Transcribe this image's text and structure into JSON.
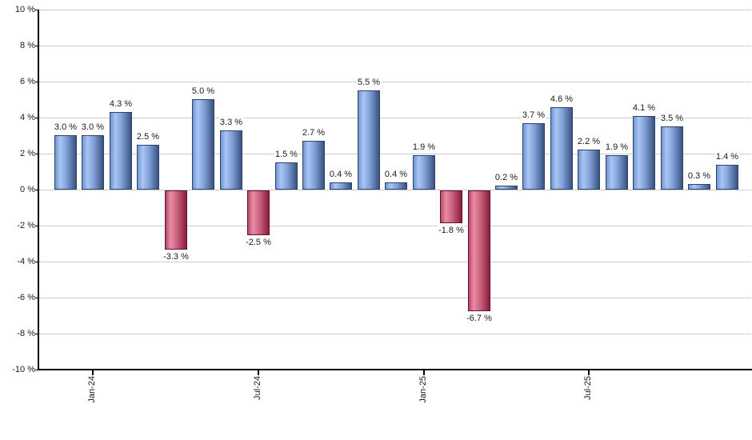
{
  "chart_data": {
    "type": "bar",
    "title": "",
    "unit": "%",
    "grid": true,
    "legend": "none",
    "bars": [
      {
        "value": 3.0,
        "label": "3.0 %"
      },
      {
        "value": 3.0,
        "label": "3.0 %"
      },
      {
        "value": 4.3,
        "label": "4.3 %"
      },
      {
        "value": 2.5,
        "label": "2.5 %"
      },
      {
        "value": -3.3,
        "label": "-3.3 %"
      },
      {
        "value": 5.0,
        "label": "5.0 %"
      },
      {
        "value": 3.3,
        "label": "3.3 %"
      },
      {
        "value": -2.5,
        "label": "-2.5 %"
      },
      {
        "value": 1.5,
        "label": "1.5 %"
      },
      {
        "value": 2.7,
        "label": "2.7 %"
      },
      {
        "value": 0.4,
        "label": "0.4 %"
      },
      {
        "value": 5.5,
        "label": "5.5 %"
      },
      {
        "value": 0.4,
        "label": "0.4 %"
      },
      {
        "value": 1.9,
        "label": "1.9 %"
      },
      {
        "value": -1.8,
        "label": "-1.8 %"
      },
      {
        "value": -6.7,
        "label": "-6.7 %"
      },
      {
        "value": 0.2,
        "label": "0.2 %"
      },
      {
        "value": 3.7,
        "label": "3.7 %"
      },
      {
        "value": 4.6,
        "label": "4.6 %"
      },
      {
        "value": 2.2,
        "label": "2.2 %"
      },
      {
        "value": 1.9,
        "label": "1.9 %"
      },
      {
        "value": 4.1,
        "label": "4.1 %"
      },
      {
        "value": 3.5,
        "label": "3.5 %"
      },
      {
        "value": 0.3,
        "label": "0.3 %"
      },
      {
        "value": 1.4,
        "label": "1.4 %"
      }
    ],
    "x_axis": {
      "tick_labels": [
        {
          "label": "Jan-24",
          "bar_index": 1
        },
        {
          "label": "Jul-24",
          "bar_index": 7
        },
        {
          "label": "Jan-25",
          "bar_index": 13
        },
        {
          "label": "Jul-25",
          "bar_index": 19
        }
      ]
    },
    "y_axis": {
      "min": -10,
      "max": 10,
      "tick_step": 2,
      "tick_labels": [
        "10 %",
        "8 %",
        "6 %",
        "4 %",
        "2 %",
        "0 %",
        "-2 %",
        "-4 %",
        "-6 %",
        "-8 %",
        "-10 %"
      ]
    },
    "colors": {
      "positive_bar_mid": "#6f94d4",
      "positive_bar_light": "#a9c6f2",
      "positive_bar_mid2": "#7f9fd8",
      "positive_bar_dark": "#3a5280",
      "positive_bar_border": "#2d4468",
      "negative_bar_mid": "#b8476a",
      "negative_bar_light": "#e98ca4",
      "negative_bar_mid2": "#c9637f",
      "negative_bar_dark": "#8c1b3a",
      "negative_bar_border": "#64102c",
      "gridline": "#cccccc",
      "axis": "#000000",
      "label_text": "#1a1a1a",
      "background": "#ffffff"
    }
  }
}
